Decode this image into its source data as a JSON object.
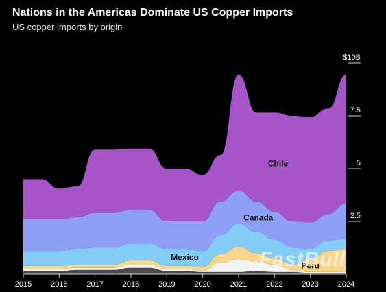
{
  "header": {
    "title": "Nations in the Americas Dominate US Copper Imports",
    "subtitle": "US copper imports by origin"
  },
  "watermark": "FastBull",
  "chart_data": {
    "type": "area",
    "stacked": true,
    "title": "Nations in the Americas Dominate US Copper Imports",
    "subtitle": "US copper imports by origin",
    "x": [
      2015.0,
      2015.5,
      2016.0,
      2016.5,
      2017.0,
      2017.5,
      2018.0,
      2018.5,
      2019.0,
      2019.5,
      2020.0,
      2020.5,
      2021.0,
      2021.5,
      2022.0,
      2022.5,
      2023.0,
      2023.5,
      2024.0
    ],
    "xticks": [
      "2015",
      "2016",
      "2017",
      "2018",
      "2019",
      "2020",
      "2021",
      "2022",
      "2023",
      "2024"
    ],
    "yticks": [
      "2.5",
      "5",
      "7.5",
      "$10B"
    ],
    "ylim": [
      0,
      10
    ],
    "series": [
      {
        "name": "",
        "color": "#4a4a4a",
        "values": [
          0.15,
          0.15,
          0.15,
          0.2,
          0.2,
          0.2,
          0.3,
          0.3,
          0.15,
          0.15,
          0.1,
          0.1,
          0.1,
          0.15,
          0.1,
          0.1,
          0.05,
          0.05,
          0.05
        ]
      },
      {
        "name": "",
        "color": "#f3f3f3",
        "values": [
          0.1,
          0.1,
          0.1,
          0.1,
          0.1,
          0.1,
          0.15,
          0.15,
          0.1,
          0.1,
          0.05,
          0.45,
          0.6,
          0.45,
          0.35,
          0.1,
          0.05,
          0.05,
          0.05
        ]
      },
      {
        "name": "Peru",
        "color": "#f7d58a",
        "values": [
          0.15,
          0.15,
          0.15,
          0.15,
          0.15,
          0.15,
          0.2,
          0.2,
          0.15,
          0.15,
          0.2,
          0.4,
          0.6,
          0.4,
          0.3,
          0.25,
          0.6,
          1.0,
          1.1
        ]
      },
      {
        "name": "Mexico",
        "color": "#84cdf7",
        "values": [
          0.7,
          0.7,
          0.7,
          0.75,
          0.8,
          0.8,
          0.8,
          0.8,
          0.8,
          0.8,
          0.75,
          0.9,
          1.1,
          1.0,
          0.9,
          0.8,
          0.5,
          0.5,
          0.5
        ]
      },
      {
        "name": "Canada",
        "color": "#8ea0f6",
        "values": [
          1.5,
          1.5,
          1.5,
          1.5,
          1.65,
          1.65,
          1.6,
          1.6,
          1.3,
          1.3,
          1.4,
          1.6,
          1.55,
          1.45,
          1.3,
          1.25,
          1.25,
          1.25,
          1.65
        ]
      },
      {
        "name": "Chile",
        "color": "#a655c9",
        "values": [
          1.9,
          1.9,
          1.45,
          1.45,
          3.0,
          3.0,
          2.9,
          2.9,
          2.5,
          2.5,
          2.2,
          2.2,
          5.5,
          4.2,
          4.7,
          5.0,
          5.0,
          5.0,
          6.1
        ]
      }
    ]
  }
}
